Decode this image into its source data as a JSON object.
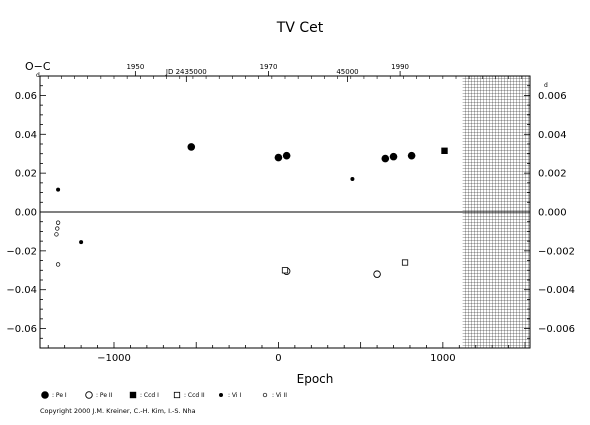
{
  "chart_data": {
    "type": "scatter",
    "title": "TV Cet",
    "ylabel": "O−C",
    "ylabel_sub": "d",
    "xlabel": "Epoch",
    "xlim": [
      -1450,
      1530
    ],
    "ylim": [
      -0.07,
      0.07
    ],
    "grid": false,
    "zero_line": true,
    "x_ticks": [
      "−1000",
      "0",
      "1000"
    ],
    "y_ticks_left": [
      "0.06",
      "0.04",
      "0.02",
      "0.00",
      "−0.02",
      "−0.04",
      "−0.06"
    ],
    "y_ticks_right": [
      "0.006",
      "0.004",
      "0.002",
      "0.000",
      "−0.002",
      "−0.004",
      "−0.006"
    ],
    "y_right_label_sub": "d",
    "top_year_ticks": [
      {
        "label": "1950",
        "x": -870
      },
      {
        "label": "1970",
        "x": -60
      },
      {
        "label": "1990",
        "x": 740
      }
    ],
    "top_jd_labels": [
      {
        "label": "JD 2435000",
        "x": -560
      },
      {
        "label": "45000",
        "x": 420
      }
    ],
    "hatched_region_from_x": 1120,
    "series": [
      {
        "name": ": Pe I",
        "marker": "filled-circle-large",
        "points": [
          [
            -530,
            0.0335
          ],
          [
            0,
            0.028
          ],
          [
            50,
            0.029
          ],
          [
            650,
            0.0275
          ],
          [
            700,
            0.0285
          ],
          [
            810,
            0.029
          ]
        ]
      },
      {
        "name": ": Pe II",
        "marker": "open-circle-large",
        "points": [
          [
            50,
            -0.0305
          ],
          [
            600,
            -0.032
          ]
        ]
      },
      {
        "name": ": Ccd I",
        "marker": "filled-square",
        "points": [
          [
            1010,
            0.0315
          ]
        ]
      },
      {
        "name": ": Ccd II",
        "marker": "open-square",
        "points": [
          [
            40,
            -0.03
          ],
          [
            770,
            -0.026
          ]
        ]
      },
      {
        "name": ": Vi I",
        "marker": "filled-circle-small",
        "points": [
          [
            -1340,
            0.0115
          ],
          [
            -1200,
            -0.0155
          ],
          [
            450,
            0.017
          ]
        ]
      },
      {
        "name": ": Vi II",
        "marker": "open-circle-small",
        "points": [
          [
            -1340,
            -0.0055
          ],
          [
            -1345,
            -0.0085
          ],
          [
            -1350,
            -0.0115
          ],
          [
            -1340,
            -0.027
          ]
        ]
      }
    ]
  },
  "copyright": "Copyright 2000 J.M. Kreiner, C.-H. Kim, I.-S. Nha"
}
